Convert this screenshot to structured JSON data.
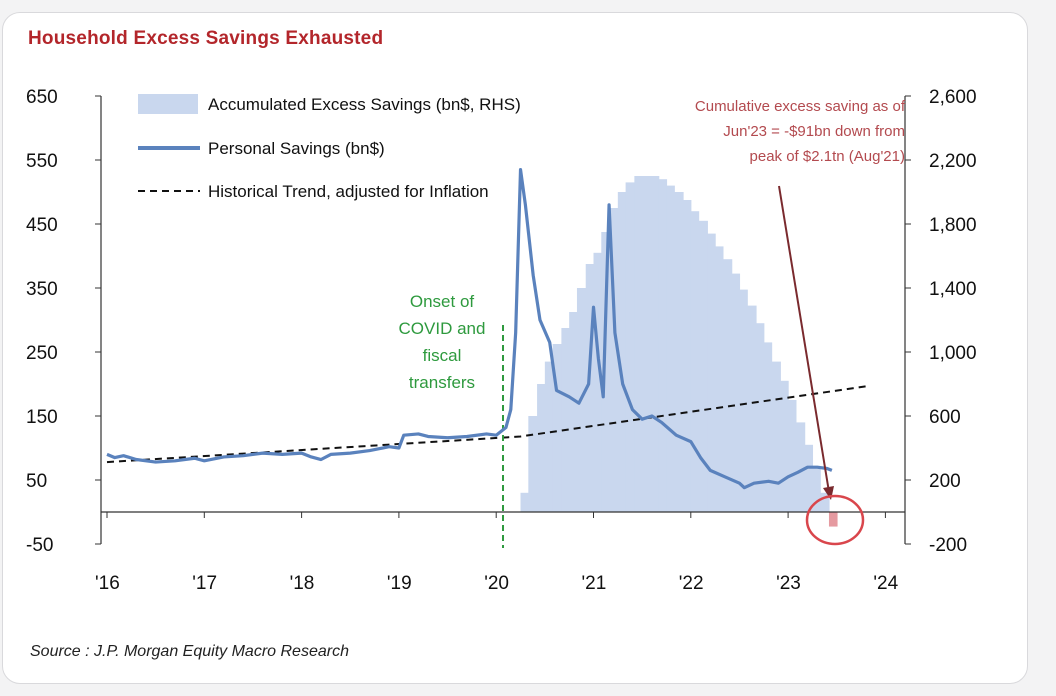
{
  "page": {
    "title": "Household Excess Savings Exhausted",
    "source": "Source : J.P. Morgan Equity Macro Research"
  },
  "chart_data": {
    "type": "line",
    "title": "Household Excess Savings Exhausted",
    "x_ticks": [
      "'16",
      "'17",
      "'18",
      "'19",
      "'20",
      "'21",
      "'22",
      "'23",
      "'24"
    ],
    "y_left": {
      "ticks": [
        "650",
        "550",
        "450",
        "350",
        "250",
        "150",
        "50",
        "-50"
      ],
      "range": [
        -50,
        650
      ]
    },
    "y_right": {
      "ticks": [
        "2,600",
        "2,200",
        "1,800",
        "1,400",
        "1,000",
        "600",
        "200",
        "-200"
      ],
      "range": [
        -200,
        2600
      ]
    },
    "legend": [
      {
        "label": "Accumulated Excess Savings (bn$, RHS)",
        "kind": "area"
      },
      {
        "label": "Personal Savings (bn$)",
        "kind": "line"
      },
      {
        "label": "Historical Trend, adjusted for Inflation",
        "kind": "dashed"
      }
    ],
    "colors": {
      "personal_savings": "#5a82bd",
      "excess_area": "#c9d7ee",
      "trend": "#111111",
      "covid": "#2e9a3e",
      "annotation": "#b34a4f",
      "highlight": "#d9464c"
    },
    "series": [
      {
        "name": "Personal Savings (bn$)",
        "axis": "left",
        "points": [
          [
            2016.0,
            90
          ],
          [
            2016.08,
            85
          ],
          [
            2016.17,
            88
          ],
          [
            2016.3,
            82
          ],
          [
            2016.5,
            78
          ],
          [
            2016.7,
            80
          ],
          [
            2016.9,
            84
          ],
          [
            2017.0,
            80
          ],
          [
            2017.2,
            86
          ],
          [
            2017.4,
            88
          ],
          [
            2017.6,
            92
          ],
          [
            2017.8,
            90
          ],
          [
            2018.0,
            92
          ],
          [
            2018.1,
            86
          ],
          [
            2018.2,
            82
          ],
          [
            2018.3,
            90
          ],
          [
            2018.5,
            92
          ],
          [
            2018.7,
            96
          ],
          [
            2018.9,
            102
          ],
          [
            2019.0,
            100
          ],
          [
            2019.05,
            120
          ],
          [
            2019.2,
            122
          ],
          [
            2019.3,
            118
          ],
          [
            2019.5,
            116
          ],
          [
            2019.7,
            118
          ],
          [
            2019.9,
            122
          ],
          [
            2020.0,
            120
          ],
          [
            2020.1,
            132
          ],
          [
            2020.15,
            160
          ],
          [
            2020.2,
            280
          ],
          [
            2020.25,
            535
          ],
          [
            2020.3,
            480
          ],
          [
            2020.38,
            370
          ],
          [
            2020.45,
            300
          ],
          [
            2020.55,
            265
          ],
          [
            2020.62,
            190
          ],
          [
            2020.75,
            180
          ],
          [
            2020.85,
            170
          ],
          [
            2020.95,
            200
          ],
          [
            2021.0,
            320
          ],
          [
            2021.05,
            240
          ],
          [
            2021.1,
            180
          ],
          [
            2021.16,
            480
          ],
          [
            2021.22,
            280
          ],
          [
            2021.3,
            200
          ],
          [
            2021.4,
            160
          ],
          [
            2021.5,
            145
          ],
          [
            2021.6,
            150
          ],
          [
            2021.7,
            140
          ],
          [
            2021.85,
            120
          ],
          [
            2022.0,
            110
          ],
          [
            2022.1,
            85
          ],
          [
            2022.2,
            65
          ],
          [
            2022.35,
            55
          ],
          [
            2022.5,
            45
          ],
          [
            2022.55,
            38
          ],
          [
            2022.65,
            45
          ],
          [
            2022.8,
            48
          ],
          [
            2022.9,
            45
          ],
          [
            2023.0,
            55
          ],
          [
            2023.1,
            62
          ],
          [
            2023.2,
            70
          ],
          [
            2023.3,
            70
          ],
          [
            2023.4,
            68
          ],
          [
            2023.45,
            65
          ]
        ]
      },
      {
        "name": "Historical Trend, adjusted for Inflation",
        "axis": "left",
        "style": "dashed",
        "points": [
          [
            2016.0,
            78
          ],
          [
            2020.25,
            118
          ],
          [
            2023.83,
            197
          ]
        ]
      },
      {
        "name": "Accumulated Excess Savings (bn$, RHS)",
        "axis": "right",
        "style": "stepped-area",
        "points": [
          [
            2020.17,
            0
          ],
          [
            2020.25,
            120
          ],
          [
            2020.33,
            600
          ],
          [
            2020.42,
            800
          ],
          [
            2020.5,
            940
          ],
          [
            2020.58,
            1050
          ],
          [
            2020.67,
            1150
          ],
          [
            2020.75,
            1250
          ],
          [
            2020.83,
            1400
          ],
          [
            2020.92,
            1550
          ],
          [
            2021.0,
            1620
          ],
          [
            2021.08,
            1750
          ],
          [
            2021.17,
            1900
          ],
          [
            2021.25,
            2000
          ],
          [
            2021.33,
            2060
          ],
          [
            2021.42,
            2100
          ],
          [
            2021.5,
            2100
          ],
          [
            2021.58,
            2100
          ],
          [
            2021.67,
            2080
          ],
          [
            2021.75,
            2040
          ],
          [
            2021.83,
            2000
          ],
          [
            2021.92,
            1950
          ],
          [
            2022.0,
            1880
          ],
          [
            2022.08,
            1820
          ],
          [
            2022.17,
            1740
          ],
          [
            2022.25,
            1660
          ],
          [
            2022.33,
            1580
          ],
          [
            2022.42,
            1490
          ],
          [
            2022.5,
            1390
          ],
          [
            2022.58,
            1290
          ],
          [
            2022.67,
            1180
          ],
          [
            2022.75,
            1060
          ],
          [
            2022.83,
            940
          ],
          [
            2022.92,
            820
          ],
          [
            2023.0,
            700
          ],
          [
            2023.08,
            560
          ],
          [
            2023.17,
            420
          ],
          [
            2023.25,
            280
          ],
          [
            2023.33,
            120
          ],
          [
            2023.42,
            -91
          ]
        ]
      }
    ],
    "annotations": [
      {
        "lines": [
          "Onset of",
          "COVID and",
          "fiscal",
          "transfers"
        ],
        "x": 2020.07
      },
      {
        "lines": [
          "Cumulative excess saving as of",
          "Jun'23 = -$91bn down from",
          "peak of $2.1tn (Aug'21)"
        ]
      }
    ]
  }
}
